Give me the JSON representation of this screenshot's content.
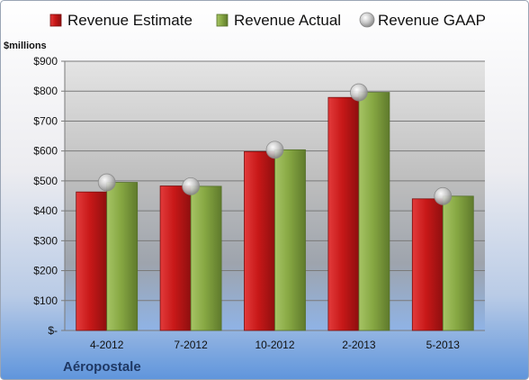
{
  "chart_data": {
    "type": "bar",
    "title": "",
    "unit_label": "$millions",
    "xlabel": "",
    "ylabel": "",
    "brand": "Aéropostale",
    "categories": [
      "4-2012",
      "7-2012",
      "10-2012",
      "2-2013",
      "5-2013"
    ],
    "series": [
      {
        "name": "Revenue Estimate",
        "kind": "bar",
        "color": "#cc1a1a",
        "values": [
          463,
          483,
          598,
          779,
          440
        ]
      },
      {
        "name": "Revenue Actual",
        "kind": "bar",
        "color": "#8aab45",
        "values": [
          495,
          482,
          604,
          796,
          449
        ]
      },
      {
        "name": "Revenue GAAP",
        "kind": "marker",
        "color": "#b8b8b8",
        "values": [
          495,
          482,
          604,
          796,
          449
        ]
      }
    ],
    "ylim": [
      0,
      900
    ],
    "yticks": [
      0,
      100,
      200,
      300,
      400,
      500,
      600,
      700,
      800,
      900
    ],
    "ytick_labels": [
      "$-",
      "$100",
      "$200",
      "$300",
      "$400",
      "$500",
      "$600",
      "$700",
      "$800",
      "$900"
    ],
    "grid": true,
    "legend_position": "top"
  }
}
